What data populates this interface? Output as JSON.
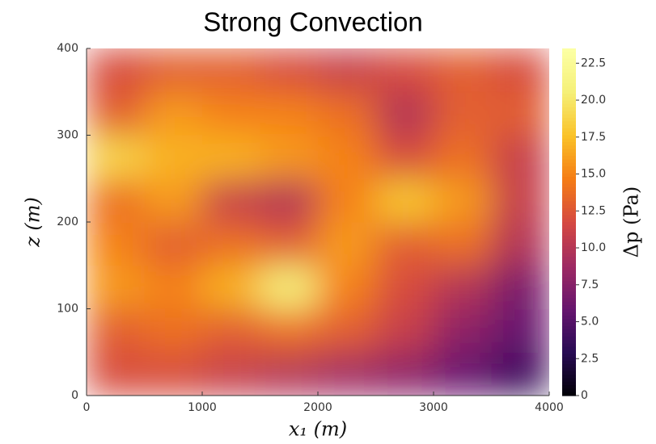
{
  "chart_data": {
    "type": "heatmap",
    "title": "Strong Convection",
    "x_label": "x₁ (m)",
    "y_label": "z (m)",
    "xlim": [
      0,
      4000
    ],
    "ylim": [
      0,
      400
    ],
    "xticks": [
      0,
      1000,
      2000,
      3000,
      4000
    ],
    "yticks": [
      0,
      100,
      200,
      300,
      400
    ],
    "colormap": "inferno",
    "values": [
      [
        12,
        12,
        11,
        10,
        9,
        8,
        6,
        4
      ],
      [
        13,
        14,
        13,
        14,
        13,
        11,
        8,
        6
      ],
      [
        16,
        15,
        17,
        21,
        15,
        12,
        10,
        7
      ],
      [
        15,
        13,
        14,
        13,
        16,
        13,
        14,
        10
      ],
      [
        14,
        16,
        11,
        10,
        15,
        18,
        16,
        11
      ],
      [
        19,
        17,
        17,
        16,
        15,
        12,
        14,
        11
      ],
      [
        13,
        16,
        15,
        15,
        14,
        10,
        13,
        13
      ],
      [
        12,
        13,
        13,
        12,
        11,
        12,
        13,
        12
      ]
    ],
    "colorbar": {
      "label": "Δp (Pa)",
      "lim": [
        0,
        23.5
      ],
      "ticks": [
        0,
        2.5,
        {
          "value": 5,
          "label": "5.0"
        },
        7.5,
        {
          "value": 10,
          "label": "10.0"
        },
        12.5,
        {
          "value": 15,
          "label": "15.0"
        },
        17.5,
        {
          "value": 20,
          "label": "20.0"
        },
        22.5
      ]
    }
  }
}
